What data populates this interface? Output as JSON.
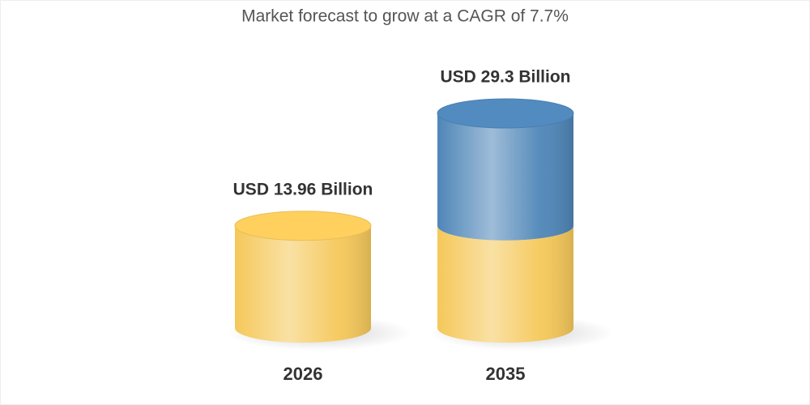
{
  "chart_data": {
    "type": "cylinder",
    "title": "Market forecast to grow at a CAGR of 7.7%",
    "categories": [
      "2026",
      "2035"
    ],
    "values": [
      13.96,
      29.3
    ],
    "value_labels": [
      "USD 13.96 Billion",
      "USD 29.3 Billion"
    ],
    "color": "#f5c85a",
    "growth_color": "#4f86b8"
  }
}
